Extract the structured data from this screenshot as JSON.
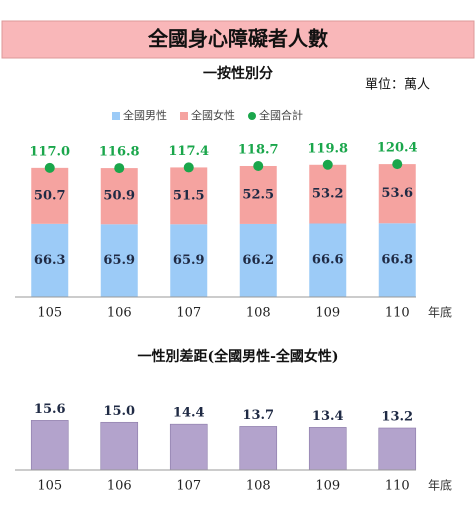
{
  "title": "全國身心障礙者人數",
  "chart_data": [
    {
      "type": "stacked_bar",
      "title": "一按性別分",
      "unit": "單位：萬人",
      "x_label": "年底",
      "categories": [
        "105",
        "106",
        "107",
        "108",
        "109",
        "110"
      ],
      "series": [
        {
          "name": "全國男性",
          "color": "#9ccbf7",
          "values": [
            66.3,
            65.9,
            65.9,
            66.2,
            66.6,
            66.8
          ]
        },
        {
          "name": "全國女性",
          "color": "#f5a3a0",
          "values": [
            50.7,
            50.9,
            51.5,
            52.5,
            53.2,
            53.6
          ]
        }
      ],
      "total": {
        "name": "全國合計",
        "color": "#1aa64b",
        "values": [
          117.0,
          116.8,
          117.4,
          118.7,
          119.8,
          120.4
        ],
        "value_labels": [
          "117.0",
          "116.8",
          "117.4",
          "118.7",
          "119.8",
          "120.4"
        ]
      },
      "ylim": [
        0,
        135
      ]
    },
    {
      "type": "bar",
      "title": "一性別差距(全國男性-全國女性)",
      "x_label": "年底",
      "categories": [
        "105",
        "106",
        "107",
        "108",
        "109",
        "110"
      ],
      "values": [
        15.6,
        15.0,
        14.4,
        13.7,
        13.4,
        13.2
      ],
      "value_labels": [
        "15.6",
        "15.0",
        "14.4",
        "13.7",
        "13.4",
        "13.2"
      ],
      "color": "#b3a3cc",
      "ylim": [
        0,
        22
      ]
    }
  ]
}
